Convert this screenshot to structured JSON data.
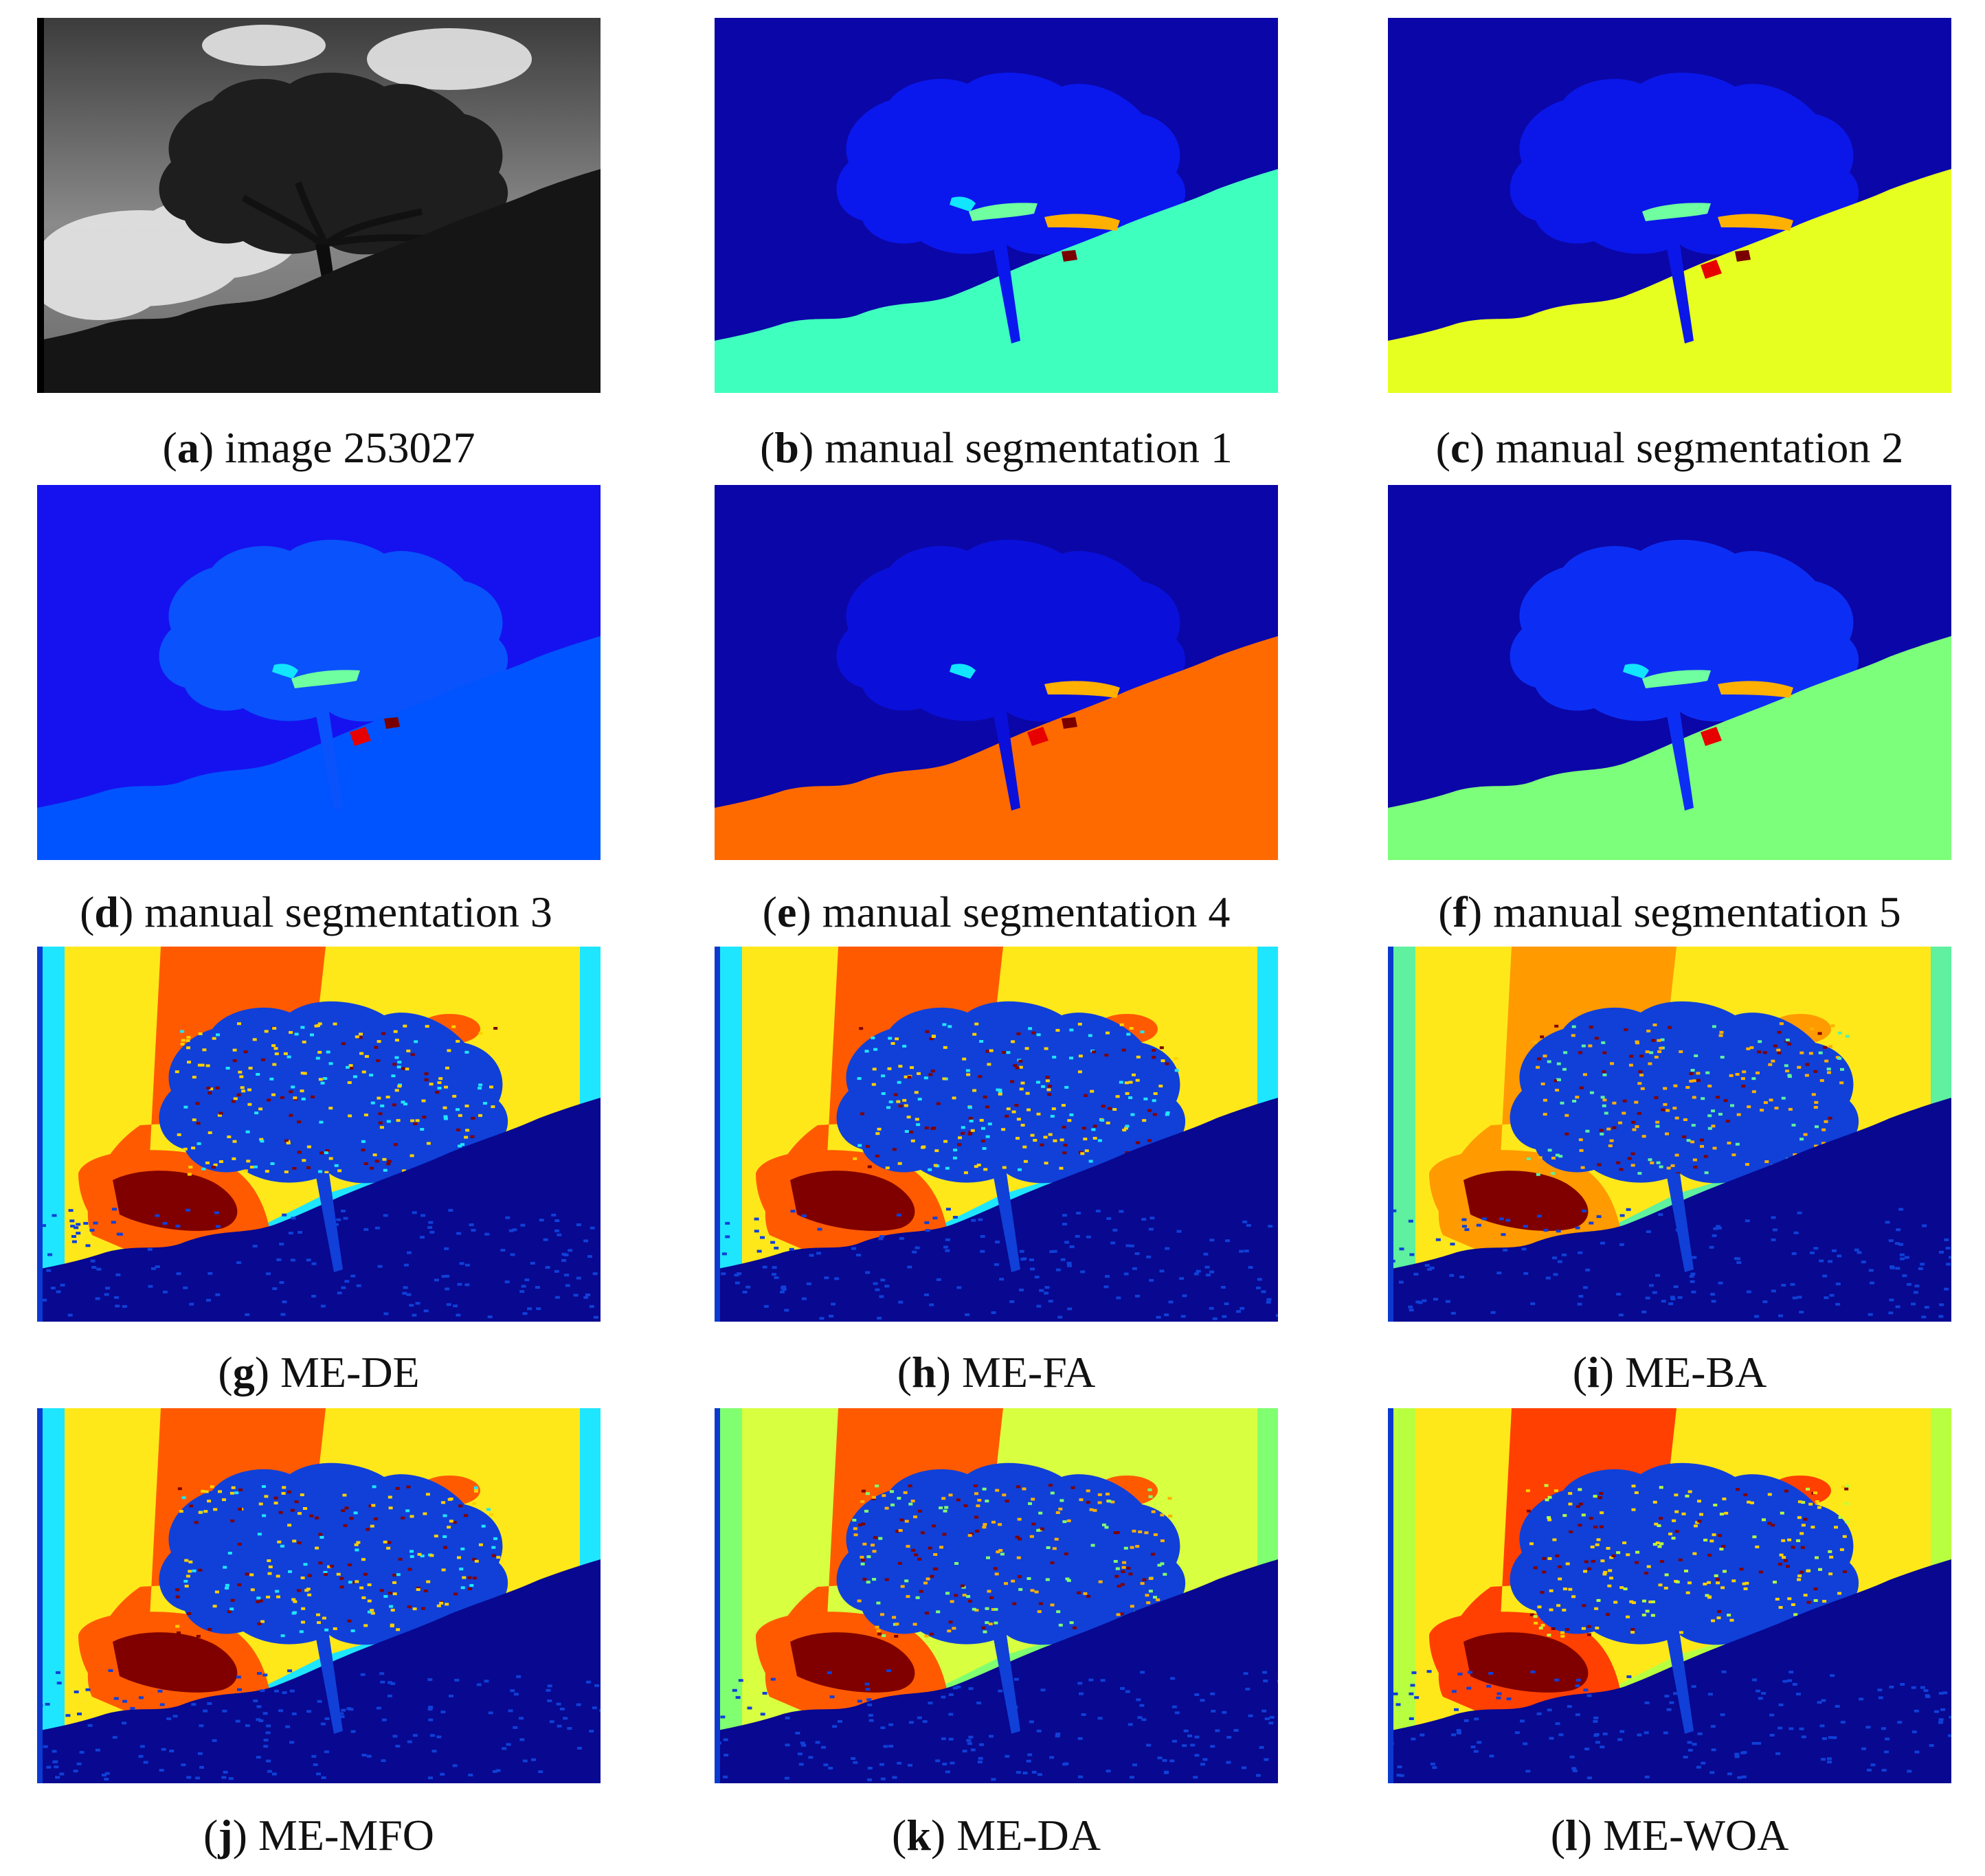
{
  "figure": {
    "panels": [
      {
        "letter": "a",
        "text": "image 253027",
        "kind": "photo"
      },
      {
        "letter": "b",
        "text": "manual segmentation 1",
        "kind": "manual",
        "bg": "#0b06a7",
        "ground": "#3fffbf",
        "tree": "#0a18ee"
      },
      {
        "letter": "c",
        "text": "manual segmentation 2",
        "kind": "manual",
        "bg": "#0b06a7",
        "ground": "#e6ff20",
        "tree": "#0b17e8"
      },
      {
        "letter": "d",
        "text": "manual segmentation 3",
        "kind": "manual",
        "bg": "#1512ef",
        "ground": "#0054ff",
        "tree": "#0a52fb"
      },
      {
        "letter": "e",
        "text": "manual segmentation 4",
        "kind": "manual",
        "bg": "#0b06a7",
        "ground": "#ff6a00",
        "tree": "#0a10d9"
      },
      {
        "letter": "f",
        "text": "manual segmentation 5",
        "kind": "manual",
        "bg": "#0b06a7",
        "ground": "#7cff7a",
        "tree": "#0c2ef4"
      },
      {
        "letter": "g",
        "text": "ME-DE",
        "kind": "auto"
      },
      {
        "letter": "h",
        "text": "ME-FA",
        "kind": "auto"
      },
      {
        "letter": "i",
        "text": "ME-BA",
        "kind": "auto"
      },
      {
        "letter": "j",
        "text": "ME-MFO",
        "kind": "auto"
      },
      {
        "letter": "k",
        "text": "ME-DA",
        "kind": "auto"
      },
      {
        "letter": "l",
        "text": "ME-WOA",
        "kind": "auto"
      }
    ]
  }
}
